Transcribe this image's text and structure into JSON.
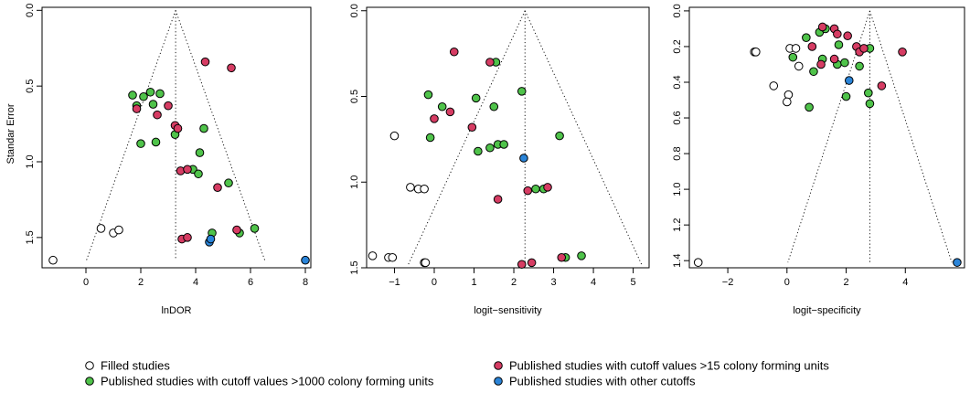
{
  "colors": {
    "filled": "#ffffff",
    "gt1000": "#4fc34a",
    "gt15": "#d63c63",
    "other": "#2a84d8",
    "stroke": "#000000"
  },
  "legend": {
    "items": [
      {
        "key": "filled",
        "label": "Filled studies"
      },
      {
        "key": "gt1000",
        "label": "Published studies with cutoff values >1000 colony forming units"
      },
      {
        "key": "gt15",
        "label": "Published studies with cutoff values >15 colony forming units"
      },
      {
        "key": "other",
        "label": "Published studies with other cutoffs"
      }
    ]
  },
  "chart_data": [
    {
      "type": "scatter",
      "xlabel": "lnDOR",
      "ylabel": "Standar Error",
      "xlim": [
        -1.6,
        8.2
      ],
      "ylim": [
        1.7,
        -0.02
      ],
      "xticks": [
        0,
        2,
        4,
        6,
        8
      ],
      "yticks": [
        0.0,
        0.5,
        1.0,
        1.5
      ],
      "ytick_labels": [
        "0.0",
        "0.5",
        "1.0",
        "1.5"
      ],
      "funnel": {
        "center": 3.27,
        "top": 0.0,
        "bottom": 1.65,
        "left": 0.02,
        "right": 6.52
      },
      "points": [
        {
          "x": -1.2,
          "y": 1.65,
          "group": "filled"
        },
        {
          "x": 0.55,
          "y": 1.44,
          "group": "filled"
        },
        {
          "x": 1.0,
          "y": 1.47,
          "group": "filled"
        },
        {
          "x": 1.2,
          "y": 1.45,
          "group": "filled"
        },
        {
          "x": 1.7,
          "y": 0.56,
          "group": "gt1000"
        },
        {
          "x": 1.85,
          "y": 0.63,
          "group": "gt1000"
        },
        {
          "x": 2.1,
          "y": 0.57,
          "group": "gt1000"
        },
        {
          "x": 2.35,
          "y": 0.54,
          "group": "gt1000"
        },
        {
          "x": 2.45,
          "y": 0.62,
          "group": "gt1000"
        },
        {
          "x": 2.7,
          "y": 0.55,
          "group": "gt1000"
        },
        {
          "x": 2.0,
          "y": 0.88,
          "group": "gt1000"
        },
        {
          "x": 2.55,
          "y": 0.87,
          "group": "gt1000"
        },
        {
          "x": 3.25,
          "y": 0.82,
          "group": "gt1000"
        },
        {
          "x": 4.3,
          "y": 0.78,
          "group": "gt1000"
        },
        {
          "x": 4.15,
          "y": 0.94,
          "group": "gt1000"
        },
        {
          "x": 3.9,
          "y": 1.05,
          "group": "gt1000"
        },
        {
          "x": 4.1,
          "y": 1.08,
          "group": "gt1000"
        },
        {
          "x": 5.2,
          "y": 1.14,
          "group": "gt1000"
        },
        {
          "x": 4.6,
          "y": 1.47,
          "group": "gt1000"
        },
        {
          "x": 5.6,
          "y": 1.47,
          "group": "gt1000"
        },
        {
          "x": 6.15,
          "y": 1.44,
          "group": "gt1000"
        },
        {
          "x": 4.35,
          "y": 0.34,
          "group": "gt15"
        },
        {
          "x": 5.3,
          "y": 0.38,
          "group": "gt15"
        },
        {
          "x": 1.85,
          "y": 0.65,
          "group": "gt15"
        },
        {
          "x": 2.6,
          "y": 0.69,
          "group": "gt15"
        },
        {
          "x": 3.0,
          "y": 0.63,
          "group": "gt15"
        },
        {
          "x": 3.25,
          "y": 0.76,
          "group": "gt15"
        },
        {
          "x": 3.35,
          "y": 0.78,
          "group": "gt15"
        },
        {
          "x": 3.45,
          "y": 1.06,
          "group": "gt15"
        },
        {
          "x": 3.7,
          "y": 1.05,
          "group": "gt15"
        },
        {
          "x": 4.8,
          "y": 1.17,
          "group": "gt15"
        },
        {
          "x": 3.5,
          "y": 1.51,
          "group": "gt15"
        },
        {
          "x": 3.7,
          "y": 1.5,
          "group": "gt15"
        },
        {
          "x": 5.5,
          "y": 1.45,
          "group": "gt15"
        },
        {
          "x": 4.5,
          "y": 1.53,
          "group": "other"
        },
        {
          "x": 4.55,
          "y": 1.51,
          "group": "other"
        },
        {
          "x": 8.0,
          "y": 1.65,
          "group": "other"
        }
      ]
    },
    {
      "type": "scatter",
      "xlabel": "logit−sensitivity",
      "ylabel": "",
      "xlim": [
        -1.7,
        5.4
      ],
      "ylim": [
        1.5,
        -0.02
      ],
      "xticks": [
        -1,
        0,
        1,
        2,
        3,
        4,
        5
      ],
      "yticks": [
        0.0,
        0.5,
        1.0,
        1.5
      ],
      "ytick_labels": [
        "0.0",
        "0.5",
        "1.0",
        "1.5"
      ],
      "funnel": {
        "center": 2.28,
        "top": 0.0,
        "bottom": 1.48,
        "left": -0.65,
        "right": 5.21
      },
      "points": [
        {
          "x": -1.0,
          "y": 0.73,
          "group": "filled"
        },
        {
          "x": -0.6,
          "y": 1.03,
          "group": "filled"
        },
        {
          "x": -0.4,
          "y": 1.04,
          "group": "filled"
        },
        {
          "x": -0.25,
          "y": 1.04,
          "group": "filled"
        },
        {
          "x": -1.55,
          "y": 1.43,
          "group": "filled"
        },
        {
          "x": -1.15,
          "y": 1.44,
          "group": "filled"
        },
        {
          "x": -1.05,
          "y": 1.44,
          "group": "filled"
        },
        {
          "x": -0.25,
          "y": 1.47,
          "group": "filled"
        },
        {
          "x": -0.22,
          "y": 1.47,
          "group": "filled"
        },
        {
          "x": -0.15,
          "y": 0.49,
          "group": "gt1000"
        },
        {
          "x": 0.2,
          "y": 0.56,
          "group": "gt1000"
        },
        {
          "x": 1.05,
          "y": 0.51,
          "group": "gt1000"
        },
        {
          "x": 1.55,
          "y": 0.3,
          "group": "gt1000"
        },
        {
          "x": 2.2,
          "y": 0.47,
          "group": "gt1000"
        },
        {
          "x": 1.5,
          "y": 0.56,
          "group": "gt1000"
        },
        {
          "x": -0.1,
          "y": 0.74,
          "group": "gt1000"
        },
        {
          "x": 1.1,
          "y": 0.82,
          "group": "gt1000"
        },
        {
          "x": 1.4,
          "y": 0.8,
          "group": "gt1000"
        },
        {
          "x": 1.6,
          "y": 0.78,
          "group": "gt1000"
        },
        {
          "x": 1.75,
          "y": 0.78,
          "group": "gt1000"
        },
        {
          "x": 3.15,
          "y": 0.73,
          "group": "gt1000"
        },
        {
          "x": 2.55,
          "y": 1.04,
          "group": "gt1000"
        },
        {
          "x": 2.75,
          "y": 1.04,
          "group": "gt1000"
        },
        {
          "x": 3.3,
          "y": 1.44,
          "group": "gt1000"
        },
        {
          "x": 3.7,
          "y": 1.43,
          "group": "gt1000"
        },
        {
          "x": 0.5,
          "y": 0.24,
          "group": "gt15"
        },
        {
          "x": 1.4,
          "y": 0.3,
          "group": "gt15"
        },
        {
          "x": 0.0,
          "y": 0.63,
          "group": "gt15"
        },
        {
          "x": 0.4,
          "y": 0.59,
          "group": "gt15"
        },
        {
          "x": 0.95,
          "y": 0.68,
          "group": "gt15"
        },
        {
          "x": 1.6,
          "y": 1.1,
          "group": "gt15"
        },
        {
          "x": 2.35,
          "y": 1.05,
          "group": "gt15"
        },
        {
          "x": 2.85,
          "y": 1.03,
          "group": "gt15"
        },
        {
          "x": 3.2,
          "y": 1.44,
          "group": "gt15"
        },
        {
          "x": 2.2,
          "y": 1.48,
          "group": "gt15"
        },
        {
          "x": 2.45,
          "y": 1.47,
          "group": "gt15"
        },
        {
          "x": 2.25,
          "y": 0.86,
          "group": "other"
        }
      ]
    },
    {
      "type": "scatter",
      "xlabel": "logit−specificity",
      "ylabel": "",
      "xlim": [
        -3.3,
        6.0
      ],
      "ylim": [
        1.44,
        -0.02
      ],
      "xticks": [
        -2,
        0,
        2,
        4
      ],
      "yticks": [
        0.0,
        0.2,
        0.4,
        0.6,
        0.8,
        1.0,
        1.2,
        1.4
      ],
      "ytick_labels": [
        "0.0",
        "0.2",
        "0.4",
        "0.6",
        "0.8",
        "1.0",
        "1.2",
        "1.4"
      ],
      "funnel": {
        "center": 2.8,
        "top": 0.0,
        "bottom": 1.41,
        "left": 0.03,
        "right": 5.57
      },
      "points": [
        {
          "x": -3.0,
          "y": 1.41,
          "group": "filled"
        },
        {
          "x": -1.1,
          "y": 0.23,
          "group": "filled"
        },
        {
          "x": -1.05,
          "y": 0.23,
          "group": "filled"
        },
        {
          "x": 0.1,
          "y": 0.21,
          "group": "filled"
        },
        {
          "x": 0.3,
          "y": 0.21,
          "group": "filled"
        },
        {
          "x": 0.4,
          "y": 0.31,
          "group": "filled"
        },
        {
          "x": -0.45,
          "y": 0.42,
          "group": "filled"
        },
        {
          "x": 0.05,
          "y": 0.47,
          "group": "filled"
        },
        {
          "x": 0.0,
          "y": 0.51,
          "group": "filled"
        },
        {
          "x": 0.65,
          "y": 0.15,
          "group": "gt1000"
        },
        {
          "x": 1.1,
          "y": 0.12,
          "group": "gt1000"
        },
        {
          "x": 1.3,
          "y": 0.1,
          "group": "gt1000"
        },
        {
          "x": 0.2,
          "y": 0.26,
          "group": "gt1000"
        },
        {
          "x": 1.2,
          "y": 0.27,
          "group": "gt1000"
        },
        {
          "x": 1.75,
          "y": 0.19,
          "group": "gt1000"
        },
        {
          "x": 0.9,
          "y": 0.34,
          "group": "gt1000"
        },
        {
          "x": 1.7,
          "y": 0.3,
          "group": "gt1000"
        },
        {
          "x": 1.95,
          "y": 0.29,
          "group": "gt1000"
        },
        {
          "x": 2.45,
          "y": 0.31,
          "group": "gt1000"
        },
        {
          "x": 2.8,
          "y": 0.21,
          "group": "gt1000"
        },
        {
          "x": 2.0,
          "y": 0.48,
          "group": "gt1000"
        },
        {
          "x": 2.75,
          "y": 0.46,
          "group": "gt1000"
        },
        {
          "x": 2.8,
          "y": 0.52,
          "group": "gt1000"
        },
        {
          "x": 0.75,
          "y": 0.54,
          "group": "gt1000"
        },
        {
          "x": 1.2,
          "y": 0.09,
          "group": "gt15"
        },
        {
          "x": 1.6,
          "y": 0.1,
          "group": "gt15"
        },
        {
          "x": 1.7,
          "y": 0.13,
          "group": "gt15"
        },
        {
          "x": 2.05,
          "y": 0.14,
          "group": "gt15"
        },
        {
          "x": 0.85,
          "y": 0.2,
          "group": "gt15"
        },
        {
          "x": 1.15,
          "y": 0.3,
          "group": "gt15"
        },
        {
          "x": 1.6,
          "y": 0.27,
          "group": "gt15"
        },
        {
          "x": 2.35,
          "y": 0.2,
          "group": "gt15"
        },
        {
          "x": 2.45,
          "y": 0.23,
          "group": "gt15"
        },
        {
          "x": 2.6,
          "y": 0.21,
          "group": "gt15"
        },
        {
          "x": 3.9,
          "y": 0.23,
          "group": "gt15"
        },
        {
          "x": 3.2,
          "y": 0.42,
          "group": "gt15"
        },
        {
          "x": 2.1,
          "y": 0.39,
          "group": "other"
        },
        {
          "x": 5.75,
          "y": 1.41,
          "group": "other"
        }
      ]
    }
  ]
}
